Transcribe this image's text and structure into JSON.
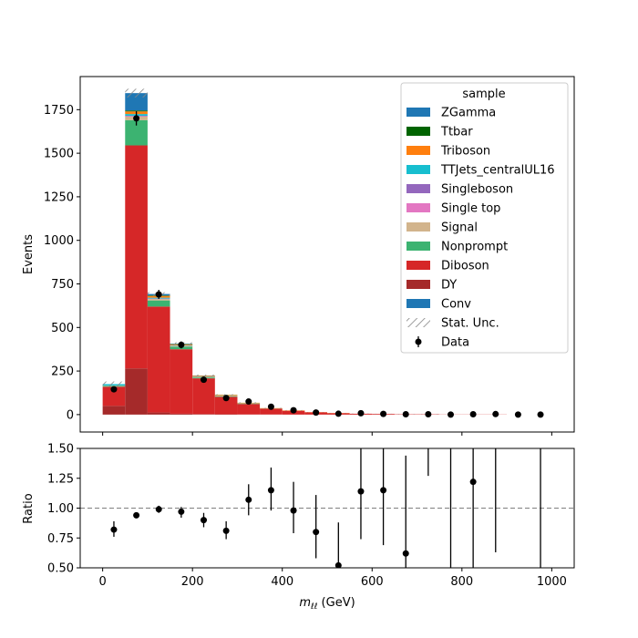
{
  "chart_data": {
    "type": "bar",
    "subtype": "stacked-histogram-with-ratio",
    "bin_edges": [
      0,
      50,
      100,
      150,
      200,
      250,
      300,
      350,
      400,
      450,
      500,
      550,
      600,
      650,
      700,
      750,
      800,
      850,
      900,
      950,
      1000
    ],
    "xlabel": "m_ll (GeV)",
    "xlim": [
      -50,
      1050
    ],
    "xticks": [
      0,
      200,
      400,
      600,
      800,
      1000
    ],
    "upper": {
      "ylabel": "Events",
      "ylim": [
        -100,
        1940
      ],
      "yticks": [
        0,
        250,
        500,
        750,
        1000,
        1250,
        1500,
        1750
      ],
      "series": [
        {
          "name": "DY",
          "color": "#a52a2a",
          "values": [
            50,
            265,
            12,
            5,
            3,
            2,
            1,
            1,
            0,
            0,
            0,
            0,
            0,
            0,
            0,
            0,
            0,
            0,
            0,
            0
          ]
        },
        {
          "name": "Diboson",
          "color": "#d62728",
          "values": [
            110,
            1280,
            608,
            370,
            205,
            100,
            60,
            33,
            22,
            13,
            8,
            5,
            4,
            2,
            2,
            1,
            1,
            1,
            0,
            0
          ]
        },
        {
          "name": "Nonprompt",
          "color": "#3cb371",
          "values": [
            5,
            145,
            35,
            15,
            5,
            3,
            2,
            1,
            0,
            0,
            0,
            0,
            0,
            0,
            0,
            0,
            0,
            0,
            0,
            0
          ]
        },
        {
          "name": "Signal",
          "color": "#d2b48c",
          "values": [
            2,
            20,
            8,
            4,
            3,
            2,
            1,
            0,
            0,
            0,
            0,
            0,
            0,
            0,
            0,
            0,
            0,
            0,
            0,
            0
          ]
        },
        {
          "name": "Single top",
          "color": "#e377c2",
          "values": [
            0,
            3,
            2,
            1,
            0,
            0,
            0,
            0,
            0,
            0,
            0,
            0,
            0,
            0,
            0,
            0,
            0,
            0,
            0,
            0
          ]
        },
        {
          "name": "Singleboson",
          "color": "#9467bd",
          "values": [
            0,
            2,
            1,
            0,
            0,
            0,
            0,
            0,
            0,
            0,
            0,
            0,
            0,
            0,
            0,
            0,
            0,
            0,
            0,
            0
          ]
        },
        {
          "name": "TTJets_centralUL16",
          "color": "#17becf",
          "values": [
            8,
            10,
            5,
            3,
            2,
            1,
            1,
            0,
            0,
            0,
            0,
            0,
            0,
            0,
            0,
            0,
            0,
            0,
            0,
            0
          ]
        },
        {
          "name": "Triboson",
          "color": "#ff7f0e",
          "values": [
            0,
            15,
            10,
            5,
            4,
            4,
            3,
            2,
            2,
            1,
            1,
            0,
            0,
            0,
            0,
            0,
            0,
            0,
            0,
            0
          ]
        },
        {
          "name": "Ttbar",
          "color": "#006400",
          "values": [
            0,
            5,
            3,
            2,
            1,
            1,
            0,
            0,
            0,
            0,
            0,
            0,
            0,
            0,
            0,
            0,
            0,
            0,
            0,
            0
          ]
        },
        {
          "name": "ZGamma",
          "color": "#1f77b4",
          "values": [
            0,
            100,
            8,
            2,
            1,
            0,
            0,
            0,
            0,
            0,
            0,
            0,
            0,
            0,
            0,
            0,
            0,
            0,
            0,
            0
          ]
        }
      ],
      "stat_unc": [
        15,
        25,
        10,
        8,
        6,
        4,
        3,
        2,
        2,
        1,
        1,
        1,
        1,
        1,
        1,
        0,
        0,
        0,
        0,
        0
      ],
      "data": {
        "name": "Data",
        "values": [
          145,
          1700,
          690,
          400,
          200,
          95,
          75,
          45,
          25,
          12,
          5,
          8,
          4,
          2,
          2,
          0,
          2,
          3,
          0,
          0
        ],
        "errors": [
          12,
          41,
          26,
          20,
          14,
          10,
          9,
          7,
          5,
          3.5,
          2.2,
          2.8,
          2,
          1.4,
          1.4,
          1,
          1.4,
          1.7,
          1,
          1
        ]
      }
    },
    "lower": {
      "ylabel": "Ratio",
      "ylim": [
        0.5,
        1.5
      ],
      "yticks": [
        0.5,
        0.75,
        1.0,
        1.25,
        1.5
      ],
      "ytick_labels": [
        "0.50",
        "0.75",
        "1.00",
        "1.25",
        "1.50"
      ],
      "reference_line": 1.0,
      "points": [
        {
          "x": 25,
          "y": 0.82,
          "lo": 0.76,
          "hi": 0.89
        },
        {
          "x": 75,
          "y": 0.94,
          "lo": 0.92,
          "hi": 0.96
        },
        {
          "x": 125,
          "y": 0.99,
          "lo": 0.96,
          "hi": 1.02
        },
        {
          "x": 175,
          "y": 0.97,
          "lo": 0.92,
          "hi": 1.01
        },
        {
          "x": 225,
          "y": 0.9,
          "lo": 0.84,
          "hi": 0.96
        },
        {
          "x": 275,
          "y": 0.81,
          "lo": 0.74,
          "hi": 0.89
        },
        {
          "x": 325,
          "y": 1.07,
          "lo": 0.94,
          "hi": 1.2
        },
        {
          "x": 375,
          "y": 1.15,
          "lo": 0.98,
          "hi": 1.34
        },
        {
          "x": 425,
          "y": 0.98,
          "lo": 0.79,
          "hi": 1.22
        },
        {
          "x": 475,
          "y": 0.8,
          "lo": 0.58,
          "hi": 1.11
        },
        {
          "x": 525,
          "y": 0.52,
          "lo": 0.3,
          "hi": 0.88
        },
        {
          "x": 575,
          "y": 1.14,
          "lo": 0.74,
          "hi": 1.6
        },
        {
          "x": 625,
          "y": 1.15,
          "lo": 0.69,
          "hi": 1.6
        },
        {
          "x": 675,
          "y": 0.62,
          "lo": 0.3,
          "hi": 1.44
        },
        {
          "x": 725,
          "y": null,
          "lo": 1.27,
          "hi": 1.6
        },
        {
          "x": 775,
          "y": null,
          "lo": 0.3,
          "hi": 1.6
        },
        {
          "x": 825,
          "y": 1.22,
          "lo": 0.3,
          "hi": 1.6
        },
        {
          "x": 875,
          "y": null,
          "lo": 0.63,
          "hi": 1.6
        },
        {
          "x": 975,
          "y": null,
          "lo": 0.3,
          "hi": 1.6
        }
      ]
    },
    "legend": {
      "title": "sample",
      "position": "top-right",
      "entries": [
        {
          "label": "ZGamma",
          "kind": "patch",
          "color": "#1f77b4"
        },
        {
          "label": "Ttbar",
          "kind": "patch",
          "color": "#006400"
        },
        {
          "label": "Triboson",
          "kind": "patch",
          "color": "#ff7f0e"
        },
        {
          "label": "TTJets_centralUL16",
          "kind": "patch",
          "color": "#17becf"
        },
        {
          "label": "Singleboson",
          "kind": "patch",
          "color": "#9467bd"
        },
        {
          "label": "Single top",
          "kind": "patch",
          "color": "#e377c2"
        },
        {
          "label": "Signal",
          "kind": "patch",
          "color": "#d2b48c"
        },
        {
          "label": "Nonprompt",
          "kind": "patch",
          "color": "#3cb371"
        },
        {
          "label": "Diboson",
          "kind": "patch",
          "color": "#d62728"
        },
        {
          "label": "DY",
          "kind": "patch",
          "color": "#a52a2a"
        },
        {
          "label": "Conv",
          "kind": "patch",
          "color": "#1f77b4"
        },
        {
          "label": "Stat. Unc.",
          "kind": "hatch",
          "color": "#888888"
        },
        {
          "label": "Data",
          "kind": "marker",
          "color": "#000000"
        }
      ]
    }
  }
}
